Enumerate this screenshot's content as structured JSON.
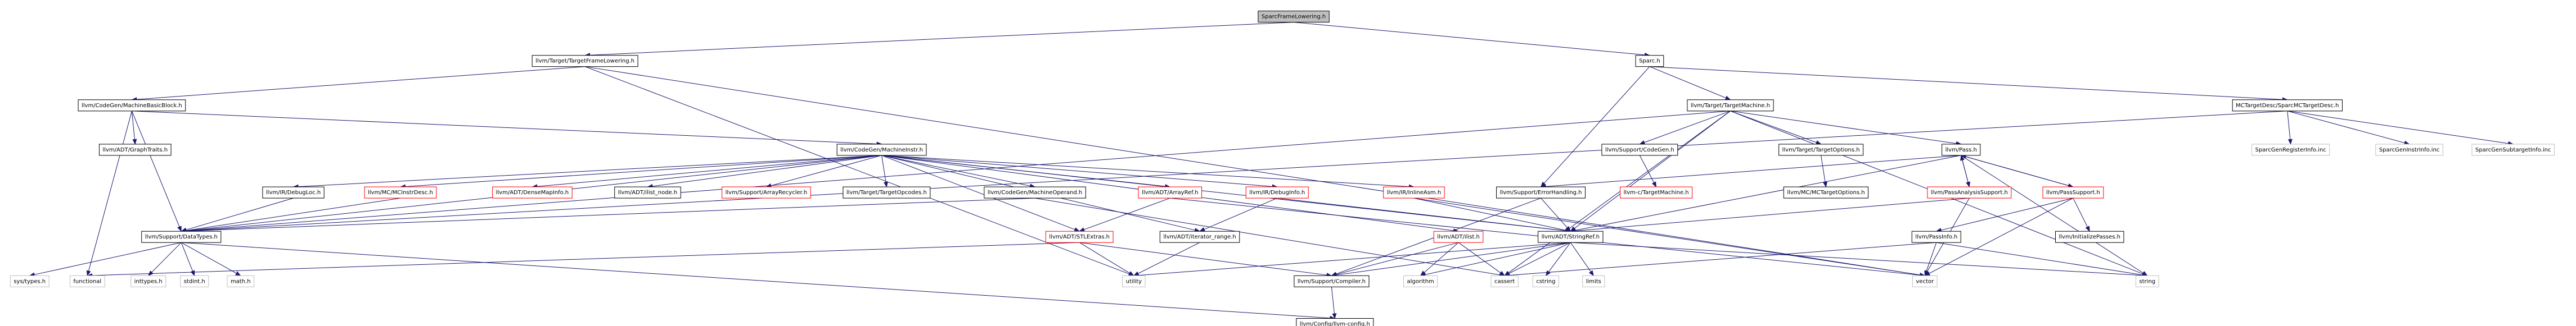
{
  "nodes": [
    {
      "label": "SparcFrameLowering.h"
    },
    {
      "label": "llvm/Target/TargetFrameLowering.h"
    },
    {
      "label": "Sparc.h"
    },
    {
      "label": "llvm/CodeGen/MachineBasicBlock.h"
    },
    {
      "label": "llvm/Target/TargetMachine.h"
    },
    {
      "label": "MCTargetDesc/SparcMCTargetDesc.h"
    },
    {
      "label": "llvm/ADT/GraphTraits.h"
    },
    {
      "label": "llvm/CodeGen/MachineInstr.h"
    },
    {
      "label": "llvm/Support/CodeGen.h"
    },
    {
      "label": "llvm/Target/TargetOptions.h"
    },
    {
      "label": "llvm/Pass.h"
    },
    {
      "label": "SparcGenRegisterInfo.inc"
    },
    {
      "label": "SparcGenInstrInfo.inc"
    },
    {
      "label": "SparcGenSubtargetInfo.inc"
    },
    {
      "label": "llvm/IR/DebugLoc.h"
    },
    {
      "label": "llvm/MC/MCInstrDesc.h"
    },
    {
      "label": "llvm/ADT/DenseMapInfo.h"
    },
    {
      "label": "llvm/ADT/ilist_node.h"
    },
    {
      "label": "llvm/Support/ArrayRecycler.h"
    },
    {
      "label": "llvm/Target/TargetOpcodes.h"
    },
    {
      "label": "llvm/CodeGen/MachineOperand.h"
    },
    {
      "label": "llvm/ADT/ArrayRef.h"
    },
    {
      "label": "llvm/IR/DebugInfo.h"
    },
    {
      "label": "llvm/IR/InlineAsm.h"
    },
    {
      "label": "llvm/Support/ErrorHandling.h"
    },
    {
      "label": "llvm-c/TargetMachine.h"
    },
    {
      "label": "llvm/MC/MCTargetOptions.h"
    },
    {
      "label": "llvm/PassAnalysisSupport.h"
    },
    {
      "label": "llvm/PassSupport.h"
    },
    {
      "label": "llvm/Support/DataTypes.h"
    },
    {
      "label": "llvm/ADT/STLExtras.h"
    },
    {
      "label": "llvm/ADT/iterator_range.h"
    },
    {
      "label": "llvm/ADT/ilist.h"
    },
    {
      "label": "llvm/ADT/StringRef.h"
    },
    {
      "label": "llvm/PassInfo.h"
    },
    {
      "label": "llvm/InitializePasses.h"
    },
    {
      "label": "sys/types.h"
    },
    {
      "label": "functional"
    },
    {
      "label": "inttypes.h"
    },
    {
      "label": "stdint.h"
    },
    {
      "label": "math.h"
    },
    {
      "label": "utility"
    },
    {
      "label": "llvm/Support/Compiler.h"
    },
    {
      "label": "algorithm"
    },
    {
      "label": "cassert"
    },
    {
      "label": "cstring"
    },
    {
      "label": "limits"
    },
    {
      "label": "vector"
    },
    {
      "label": "string"
    },
    {
      "label": "llvm/Config/llvm-config.h"
    }
  ]
}
